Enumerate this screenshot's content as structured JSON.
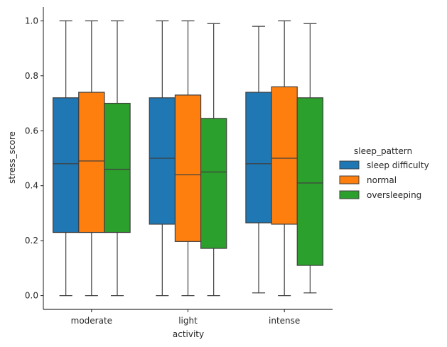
{
  "chart_data": {
    "type": "box",
    "title": "",
    "xlabel": "activity",
    "ylabel": "stress_score",
    "ylim": [
      -0.05,
      1.05
    ],
    "yticks": [
      0.0,
      0.2,
      0.4,
      0.6,
      0.8,
      1.0
    ],
    "ytick_labels": [
      "0.0",
      "0.2",
      "0.4",
      "0.6",
      "0.8",
      "1.0"
    ],
    "categories": [
      "moderate",
      "light",
      "intense"
    ],
    "legend": {
      "title": "sleep_pattern",
      "placement": "right",
      "entries": [
        "sleep difficulty",
        "normal",
        "oversleeping"
      ]
    },
    "series": [
      {
        "name": "sleep difficulty",
        "color": "#1f77b4",
        "boxes": [
          {
            "min": 0.0,
            "q1": 0.23,
            "median": 0.48,
            "q3": 0.72,
            "max": 1.0
          },
          {
            "min": 0.0,
            "q1": 0.26,
            "median": 0.5,
            "q3": 0.72,
            "max": 1.0
          },
          {
            "min": 0.01,
            "q1": 0.265,
            "median": 0.48,
            "q3": 0.74,
            "max": 0.98
          }
        ]
      },
      {
        "name": "normal",
        "color": "#ff7f0e",
        "boxes": [
          {
            "min": 0.0,
            "q1": 0.23,
            "median": 0.49,
            "q3": 0.74,
            "max": 1.0
          },
          {
            "min": 0.0,
            "q1": 0.197,
            "median": 0.44,
            "q3": 0.73,
            "max": 1.0
          },
          {
            "min": 0.0,
            "q1": 0.26,
            "median": 0.5,
            "q3": 0.76,
            "max": 1.0
          }
        ]
      },
      {
        "name": "oversleeping",
        "color": "#2ca02c",
        "boxes": [
          {
            "min": 0.0,
            "q1": 0.23,
            "median": 0.46,
            "q3": 0.7,
            "max": 1.0
          },
          {
            "min": 0.0,
            "q1": 0.172,
            "median": 0.45,
            "q3": 0.645,
            "max": 0.99
          },
          {
            "min": 0.01,
            "q1": 0.11,
            "median": 0.41,
            "q3": 0.72,
            "max": 0.99
          }
        ]
      }
    ],
    "grid": false
  }
}
